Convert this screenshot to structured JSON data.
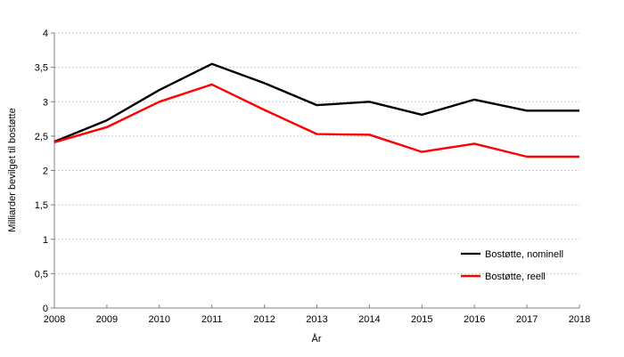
{
  "chart_data": {
    "type": "line",
    "x": [
      2008,
      2009,
      2010,
      2011,
      2012,
      2013,
      2014,
      2015,
      2016,
      2017,
      2018
    ],
    "x_labels": [
      "2008",
      "2009",
      "2010",
      "2011",
      "2012",
      "2013",
      "2014",
      "2015",
      "2016",
      "2017",
      "2018"
    ],
    "series": [
      {
        "name": "Bostøtte, nominell",
        "color": "#000000",
        "values": [
          2.42,
          2.73,
          3.17,
          3.55,
          3.27,
          2.95,
          3.0,
          2.81,
          3.03,
          2.87,
          2.87
        ]
      },
      {
        "name": "Bostøtte, reell",
        "color": "#ff0000",
        "values": [
          2.41,
          2.63,
          3.0,
          3.25,
          2.88,
          2.53,
          2.52,
          2.27,
          2.39,
          2.2,
          2.2
        ]
      }
    ],
    "title": "",
    "xlabel": "År",
    "ylabel": "Milliarder bevilget til bostøtte",
    "xlim": [
      2008,
      2018
    ],
    "ylim": [
      0,
      4
    ],
    "ytick_values": [
      0,
      0.5,
      1,
      1.5,
      2,
      2.5,
      3,
      3.5,
      4
    ],
    "ytick_labels": [
      "0",
      "0,5",
      "1",
      "1,5",
      "2",
      "2,5",
      "3",
      "3,5",
      "4"
    ],
    "grid": "horizontal-dashed",
    "legend_position": "inside-bottom-right"
  },
  "colors": {
    "background": "#ffffff",
    "grid": "#c9c9c9",
    "axis": "#808080",
    "text": "#000000",
    "series_nominell": "#000000",
    "series_reell": "#ff0000"
  }
}
